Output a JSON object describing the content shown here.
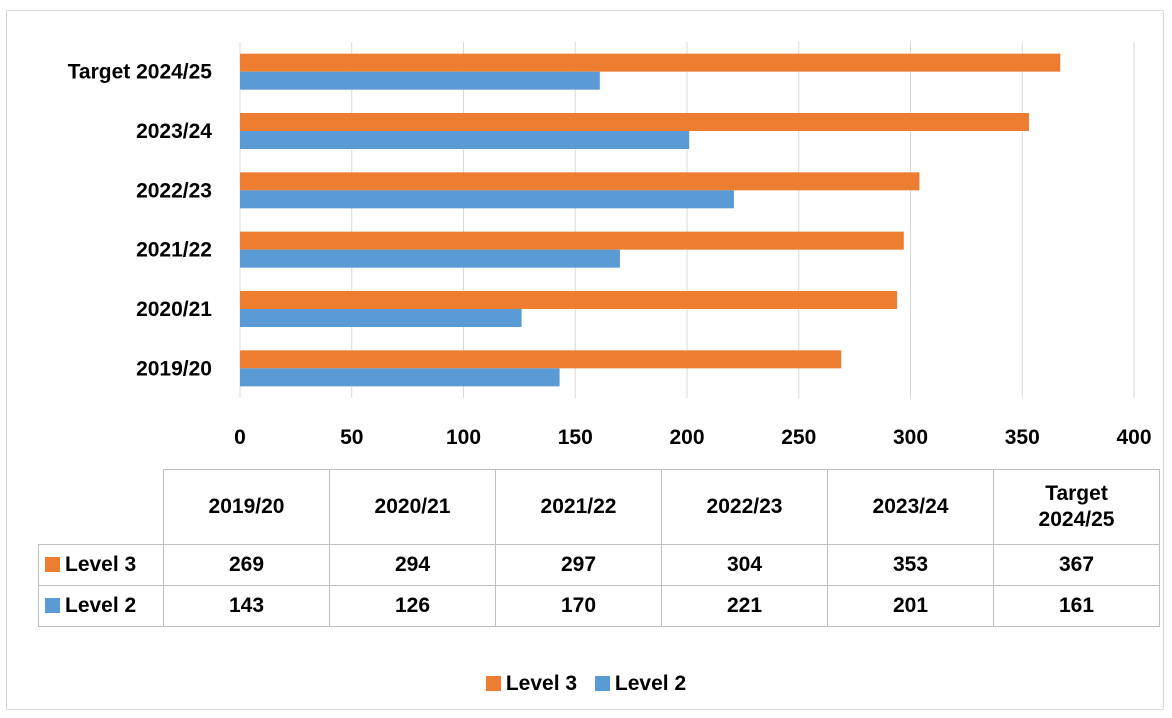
{
  "chart_data": {
    "type": "bar",
    "orientation": "horizontal",
    "categories": [
      "2019/20",
      "2020/21",
      "2021/22",
      "2022/23",
      "2023/24",
      "Target 2024/25"
    ],
    "series": [
      {
        "name": "Level 3",
        "color": "#ed7d31",
        "values": [
          269,
          294,
          297,
          304,
          353,
          367
        ]
      },
      {
        "name": "Level 2",
        "color": "#5b9bd5",
        "values": [
          143,
          126,
          170,
          221,
          201,
          161
        ]
      }
    ],
    "xlim": [
      0,
      400
    ],
    "x_ticks": [
      0,
      50,
      100,
      150,
      200,
      250,
      300,
      350,
      400
    ],
    "grid": true,
    "legend": "bottom",
    "data_table": true
  },
  "table": {
    "headers": [
      "2019/20",
      "2020/21",
      "2021/22",
      "2022/23",
      "2023/24",
      "Target 2024/25"
    ]
  }
}
